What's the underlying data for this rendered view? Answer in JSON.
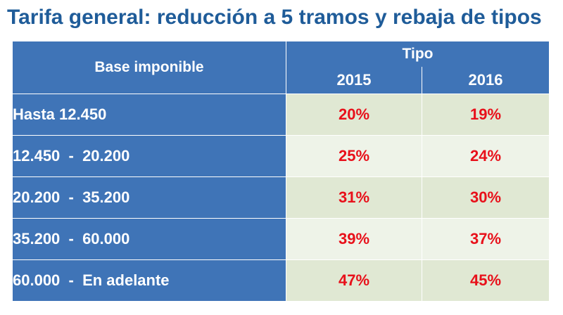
{
  "title": "Tarifa general: reducción a 5 tramos y rebaja de tipos",
  "table": {
    "base_header": "Base imponible",
    "tipo_header": "Tipo",
    "years": [
      "2015",
      "2016"
    ],
    "rows": [
      {
        "base": "Hasta 12.450",
        "r2015": "20%",
        "r2016": "19%"
      },
      {
        "base": "12.450  -  20.200",
        "r2015": "25%",
        "r2016": "24%"
      },
      {
        "base": "20.200  -  35.200",
        "r2015": "31%",
        "r2016": "30%"
      },
      {
        "base": "35.200  -  60.000",
        "r2015": "39%",
        "r2016": "37%"
      },
      {
        "base": "60.000  -  En adelante",
        "r2015": "47%",
        "r2016": "45%"
      }
    ]
  },
  "colors": {
    "title": "#1f5c99",
    "header_bg": "#3f74b7",
    "rate_text": "#e8101a",
    "cell_bg_a": "#e0e8d3",
    "cell_bg_b": "#eef3e8"
  }
}
